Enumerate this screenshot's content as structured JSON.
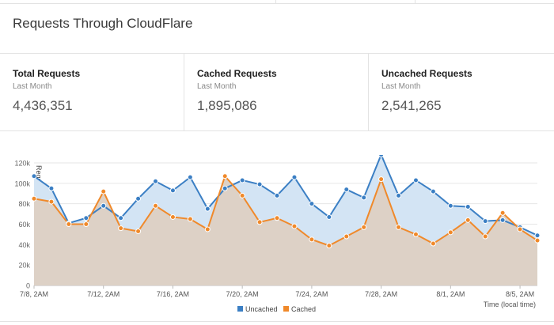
{
  "header": {
    "title": "Requests Through CloudFlare"
  },
  "stats": [
    {
      "label": "Total Requests",
      "period": "Last Month",
      "value": "4,436,351"
    },
    {
      "label": "Cached Requests",
      "period": "Last Month",
      "value": "1,895,086"
    },
    {
      "label": "Uncached Requests",
      "period": "Last Month",
      "value": "2,541,265"
    }
  ],
  "colors": {
    "uncached_line": "#3b7fc4",
    "uncached_fill": "#d3e4f4",
    "cached_line": "#f0892a",
    "cached_fill": "#ddd1c6"
  },
  "chart_data": {
    "type": "area",
    "ylabel": "Requests",
    "xlabel": "Time (local time)",
    "ylim": [
      0,
      120000
    ],
    "y_ticks": [
      0,
      20000,
      40000,
      60000,
      80000,
      100000,
      120000
    ],
    "y_tick_labels": [
      "0",
      "20k",
      "40k",
      "60k",
      "80k",
      "100k",
      "120k"
    ],
    "x_tick_labels": [
      "7/8, 2AM",
      "7/12, 2AM",
      "7/16, 2AM",
      "7/20, 2AM",
      "7/24, 2AM",
      "7/28, 2AM",
      "8/1, 2AM",
      "8/5, 2AM"
    ],
    "x": [
      "7/8",
      "7/9",
      "7/10",
      "7/11",
      "7/12",
      "7/13",
      "7/14",
      "7/15",
      "7/16",
      "7/17",
      "7/18",
      "7/19",
      "7/20",
      "7/21",
      "7/22",
      "7/23",
      "7/24",
      "7/25",
      "7/26",
      "7/27",
      "7/28",
      "7/29",
      "7/30",
      "7/31",
      "8/1",
      "8/2",
      "8/3",
      "8/4",
      "8/5",
      "8/6"
    ],
    "legend": "bottom-center",
    "grid": true,
    "series": [
      {
        "name": "Uncached",
        "values": [
          107000,
          95000,
          61000,
          66000,
          78000,
          66000,
          85000,
          102000,
          93000,
          106000,
          75000,
          95000,
          103000,
          99000,
          88000,
          106000,
          80000,
          67000,
          94000,
          86000,
          128000,
          88000,
          103000,
          92000,
          78000,
          77000,
          63000,
          64000,
          57000,
          49000
        ]
      },
      {
        "name": "Cached",
        "values": [
          85000,
          82000,
          60000,
          60000,
          92000,
          56000,
          53000,
          78000,
          67000,
          65000,
          55000,
          107000,
          88000,
          62000,
          66000,
          58000,
          45000,
          39000,
          48000,
          57000,
          104000,
          57000,
          50000,
          41000,
          52000,
          64000,
          48000,
          71000,
          55000,
          44000
        ]
      }
    ]
  }
}
